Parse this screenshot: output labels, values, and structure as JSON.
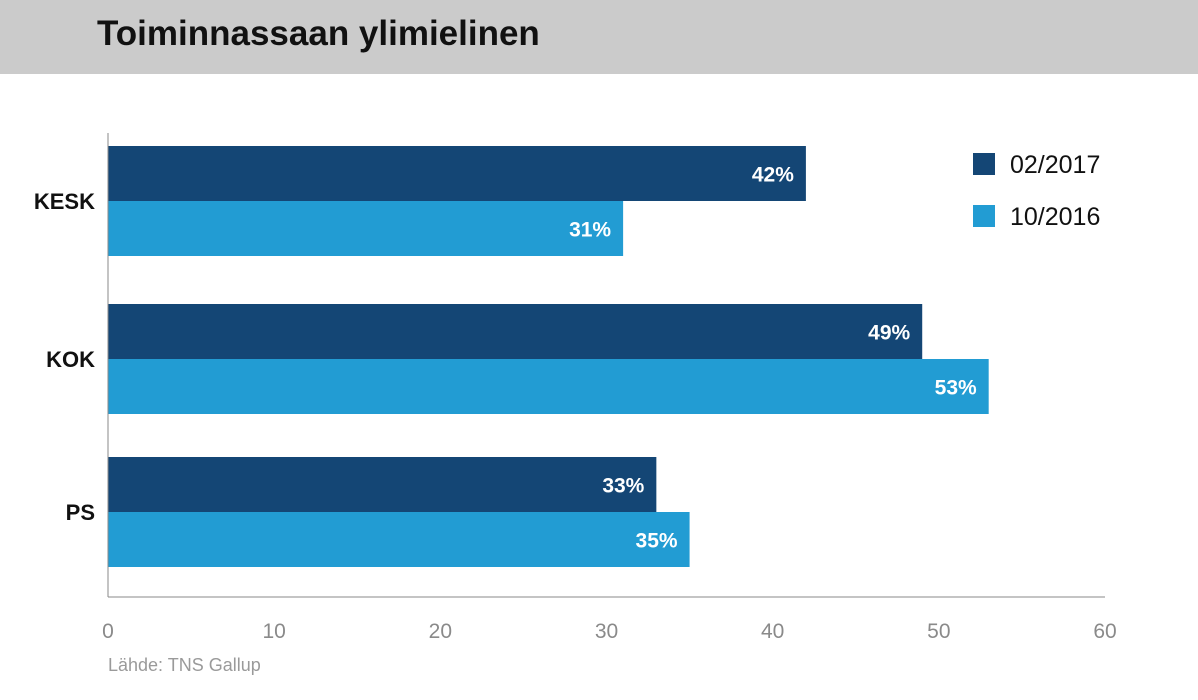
{
  "page": {
    "title": "Toiminnassaan ylimielinen",
    "source": "Lähde: TNS Gallup"
  },
  "chart_data": {
    "type": "bar",
    "orientation": "horizontal",
    "title": "Toiminnassaan ylimielinen",
    "categories": [
      "KESK",
      "KOK",
      "PS"
    ],
    "series": [
      {
        "name": "02/2017",
        "values": [
          42,
          49,
          33
        ],
        "color": "#144675"
      },
      {
        "name": "10/2016",
        "values": [
          31,
          53,
          35
        ],
        "color": "#229cd3"
      }
    ],
    "data_labels": [
      [
        "42%",
        "49%",
        "33%"
      ],
      [
        "31%",
        "53%",
        "35%"
      ]
    ],
    "xlim": [
      0,
      60
    ],
    "xticks": [
      0,
      10,
      20,
      30,
      40,
      50,
      60
    ],
    "xlabel": "",
    "ylabel": "",
    "grid": false,
    "legend_position": "top-right",
    "source": "Lähde: TNS Gallup"
  }
}
